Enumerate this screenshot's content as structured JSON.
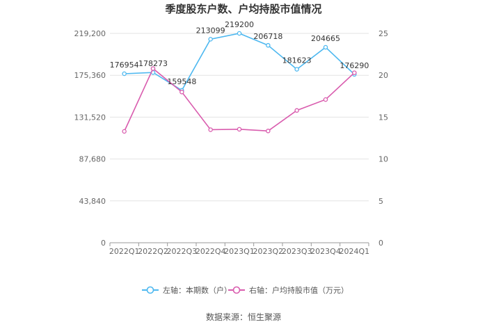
{
  "chart_data": {
    "type": "line",
    "title": "季度股东户数、户均持股市值情况",
    "categories": [
      "2022Q1",
      "2022Q2",
      "2022Q3",
      "2022Q4",
      "2023Q1",
      "2023Q2",
      "2023Q3",
      "2023Q4",
      "2024Q1"
    ],
    "series": [
      {
        "name": "左轴：本期数（户）",
        "axis": "left",
        "color": "#4DB8F0",
        "values": [
          176954,
          178273,
          159548,
          213099,
          219200,
          206718,
          181623,
          204665,
          176290
        ],
        "labels": [
          "176954",
          "178273",
          "159548",
          "213099",
          "219200",
          "206718",
          "181623",
          "204665",
          "176290"
        ]
      },
      {
        "name": "右轴：户均持股市值（万元）",
        "axis": "right",
        "color": "#D95CAE",
        "values": [
          13.3,
          20.8,
          18.0,
          13.5,
          13.55,
          13.35,
          15.8,
          17.1,
          20.3
        ]
      }
    ],
    "y_left": {
      "min": 0,
      "max": 219200,
      "ticks": [
        0,
        43840,
        87680,
        131520,
        175360,
        219200
      ],
      "tick_labels": [
        "0",
        "43,840",
        "87,680",
        "131,520",
        "175,360",
        "219,200"
      ]
    },
    "y_right": {
      "min": 0,
      "max": 25,
      "ticks": [
        0,
        5,
        10,
        15,
        20,
        25
      ],
      "tick_labels": [
        "0",
        "5",
        "10",
        "15",
        "20",
        "25"
      ]
    },
    "grid": true,
    "legend_position": "bottom",
    "source": "数据来源：恒生聚源"
  }
}
